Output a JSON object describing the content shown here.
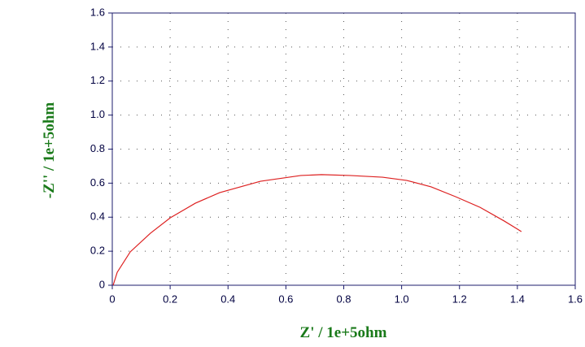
{
  "chart_data": {
    "type": "line",
    "x_label": "Z' / 1e+5ohm",
    "y_label": "-Z'' / 1e+5ohm",
    "x": [
      0.003,
      0.017,
      0.062,
      0.132,
      0.2,
      0.287,
      0.371,
      0.512,
      0.652,
      0.723,
      0.821,
      0.934,
      1.018,
      1.102,
      1.187,
      1.271,
      1.355,
      1.4,
      1.414
    ],
    "values": [
      0,
      0.076,
      0.196,
      0.306,
      0.396,
      0.482,
      0.544,
      0.611,
      0.645,
      0.65,
      0.645,
      0.635,
      0.616,
      0.578,
      0.52,
      0.458,
      0.377,
      0.33,
      0.315
    ],
    "color": "#dd2020",
    "xlim": [
      0,
      1.6
    ],
    "ylim": [
      0,
      1.6
    ],
    "xticks": [
      0,
      0.2,
      0.4,
      0.6,
      0.8,
      {
        "value": 1,
        "label": "1.0"
      },
      1.2,
      1.4,
      1.6
    ],
    "yticks": [
      0,
      0.2,
      0.4,
      0.6,
      0.8,
      {
        "value": 1,
        "label": "1.0"
      },
      1.2,
      1.4,
      1.6
    ],
    "grid": true
  }
}
